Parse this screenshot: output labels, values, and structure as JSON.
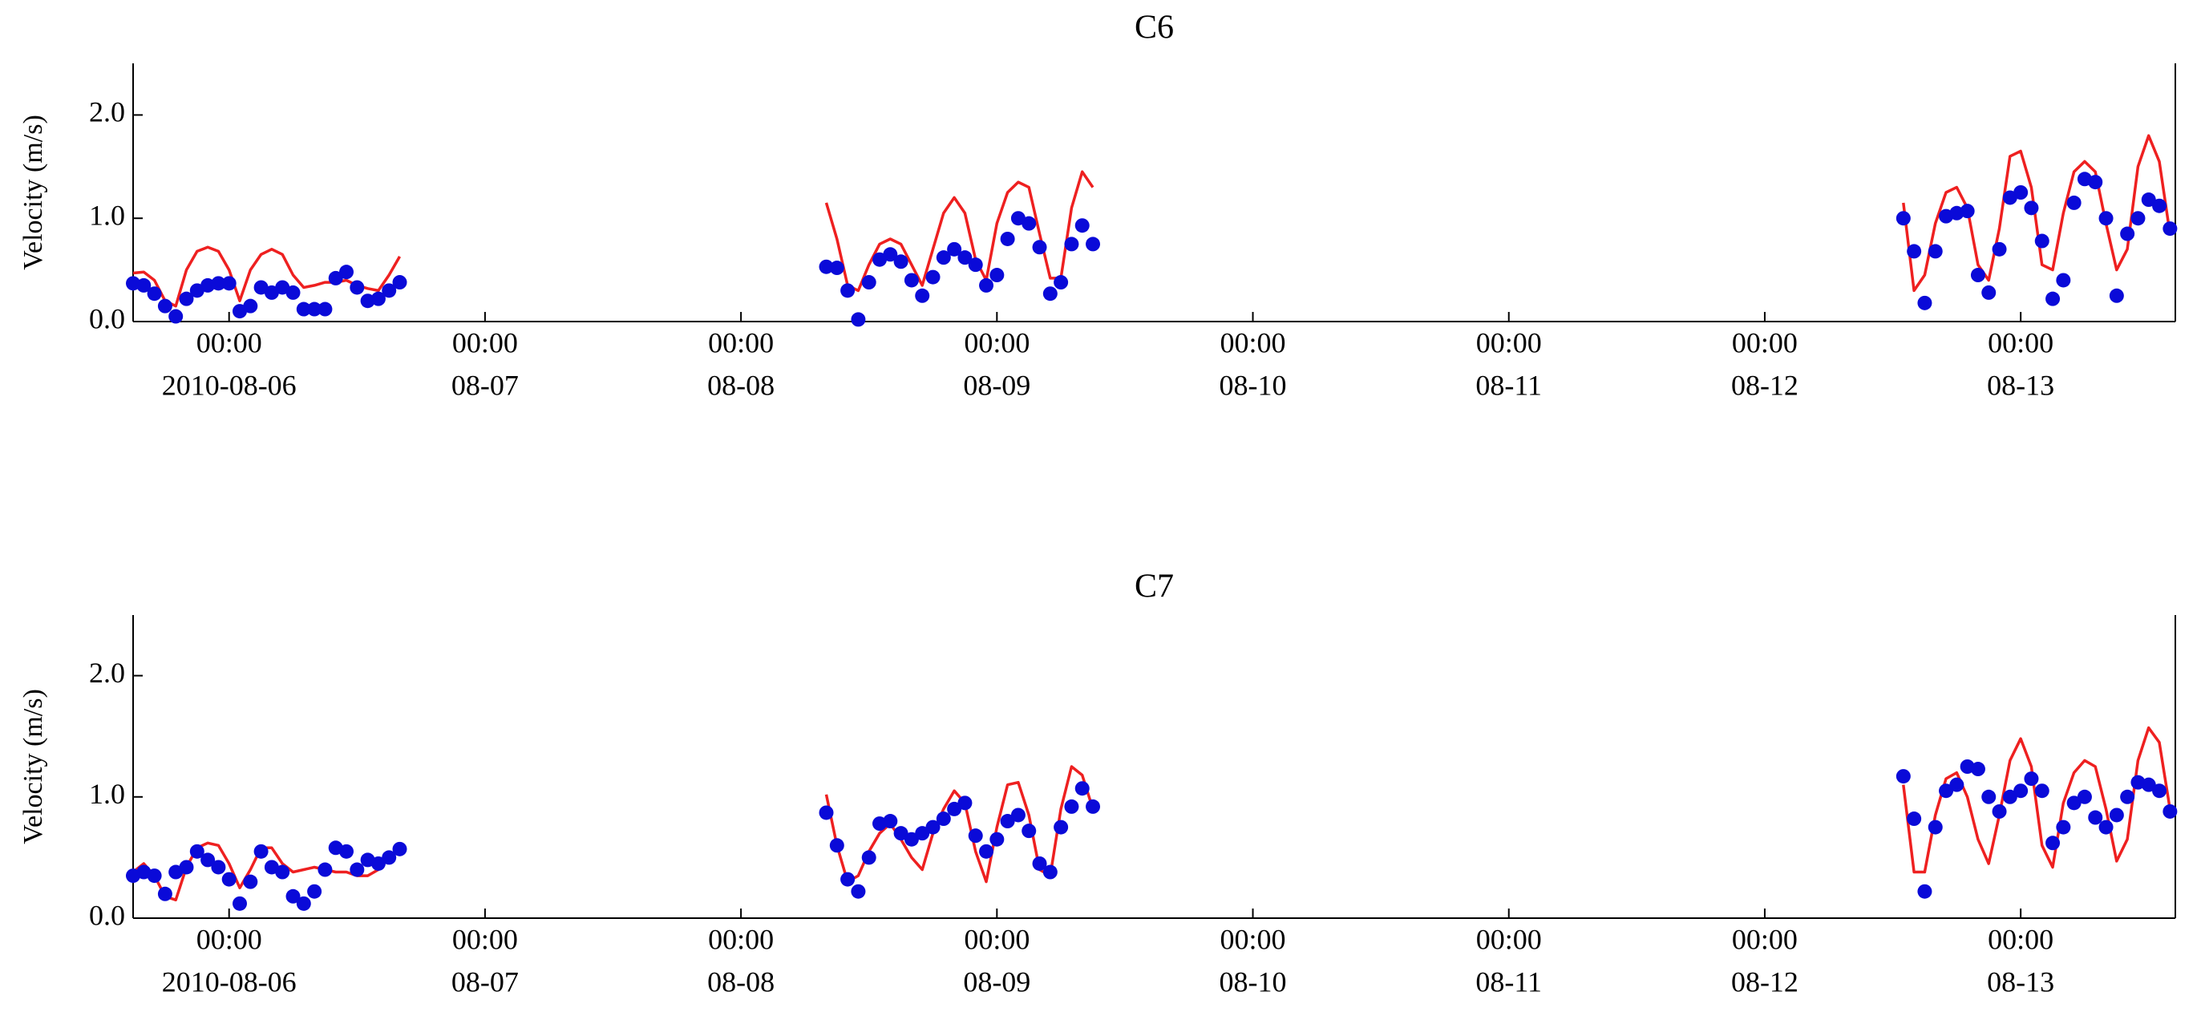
{
  "chart_data": [
    {
      "type": "line",
      "title": "C6",
      "y_label": "Velocity (m/s)",
      "xlim": [
        "2010-08-05 15:00",
        "2010-08-13 14:30"
      ],
      "xticks": [
        {
          "value": "2010-08-06 00:00",
          "label": [
            "00:00",
            "2010-08-06"
          ]
        },
        {
          "value": "2010-08-07 00:00",
          "label": [
            "00:00",
            "08-07"
          ]
        },
        {
          "value": "2010-08-08 00:00",
          "label": [
            "00:00",
            "08-08"
          ]
        },
        {
          "value": "2010-08-09 00:00",
          "label": [
            "00:00",
            "08-09"
          ]
        },
        {
          "value": "2010-08-10 00:00",
          "label": [
            "00:00",
            "08-10"
          ]
        },
        {
          "value": "2010-08-11 00:00",
          "label": [
            "00:00",
            "08-11"
          ]
        },
        {
          "value": "2010-08-12 00:00",
          "label": [
            "00:00",
            "08-12"
          ]
        },
        {
          "value": "2010-08-13 00:00",
          "label": [
            "00:00",
            "08-13"
          ]
        }
      ],
      "ylim": [
        0,
        2.5
      ],
      "yticks": [
        {
          "value": 0,
          "label": "0.0"
        },
        {
          "value": 1,
          "label": "1.0"
        },
        {
          "value": 2,
          "label": "2.0"
        }
      ],
      "x": [
        "2010-08-05 15:00",
        "2010-08-05 16:00",
        "2010-08-05 17:00",
        "2010-08-05 18:00",
        "2010-08-05 19:00",
        "2010-08-05 20:00",
        "2010-08-05 21:00",
        "2010-08-05 22:00",
        "2010-08-05 23:00",
        "2010-08-06 00:00",
        "2010-08-06 01:00",
        "2010-08-06 02:00",
        "2010-08-06 03:00",
        "2010-08-06 04:00",
        "2010-08-06 05:00",
        "2010-08-06 06:00",
        "2010-08-06 07:00",
        "2010-08-06 08:00",
        "2010-08-06 09:00",
        "2010-08-06 10:00",
        "2010-08-06 11:00",
        "2010-08-06 12:00",
        "2010-08-06 13:00",
        "2010-08-06 14:00",
        "2010-08-06 15:00",
        "2010-08-06 16:00",
        "2010-08-07 12:00",
        "2010-08-08 08:00",
        "2010-08-08 09:00",
        "2010-08-08 10:00",
        "2010-08-08 11:00",
        "2010-08-08 12:00",
        "2010-08-08 13:00",
        "2010-08-08 14:00",
        "2010-08-08 15:00",
        "2010-08-08 16:00",
        "2010-08-08 17:00",
        "2010-08-08 18:00",
        "2010-08-08 19:00",
        "2010-08-08 20:00",
        "2010-08-08 21:00",
        "2010-08-08 22:00",
        "2010-08-08 23:00",
        "2010-08-09 00:00",
        "2010-08-09 01:00",
        "2010-08-09 02:00",
        "2010-08-09 03:00",
        "2010-08-09 04:00",
        "2010-08-09 05:00",
        "2010-08-09 06:00",
        "2010-08-09 07:00",
        "2010-08-09 08:00",
        "2010-08-09 09:00",
        "2010-08-10 23:00",
        "2010-08-12 13:00",
        "2010-08-12 14:00",
        "2010-08-12 15:00",
        "2010-08-12 16:00",
        "2010-08-12 17:00",
        "2010-08-12 18:00",
        "2010-08-12 19:00",
        "2010-08-12 20:00",
        "2010-08-12 21:00",
        "2010-08-12 22:00",
        "2010-08-12 23:00",
        "2010-08-13 00:00",
        "2010-08-13 01:00",
        "2010-08-13 02:00",
        "2010-08-13 03:00",
        "2010-08-13 04:00",
        "2010-08-13 05:00",
        "2010-08-13 06:00",
        "2010-08-13 07:00",
        "2010-08-13 08:00",
        "2010-08-13 09:00",
        "2010-08-13 10:00",
        "2010-08-13 11:00",
        "2010-08-13 12:00",
        "2010-08-13 13:00",
        "2010-08-13 14:00"
      ],
      "series": [
        {
          "type": "line",
          "color": "#ee2020",
          "values": [
            0.47,
            0.48,
            0.4,
            0.2,
            0.15,
            0.5,
            0.68,
            0.72,
            0.68,
            0.5,
            0.2,
            0.5,
            0.65,
            0.7,
            0.65,
            0.45,
            0.33,
            0.35,
            0.38,
            0.38,
            0.4,
            0.35,
            0.32,
            0.3,
            0.45,
            0.63,
            null,
            1.15,
            0.8,
            0.35,
            0.3,
            0.55,
            0.75,
            0.8,
            0.75,
            0.55,
            0.35,
            0.7,
            1.05,
            1.2,
            1.05,
            0.6,
            0.4,
            0.95,
            1.25,
            1.35,
            1.3,
            0.85,
            0.42,
            0.42,
            1.1,
            1.45,
            1.3,
            null,
            1.15,
            0.3,
            0.45,
            0.95,
            1.25,
            1.3,
            1.1,
            0.55,
            0.4,
            0.9,
            1.6,
            1.65,
            1.3,
            0.55,
            0.5,
            1.05,
            1.45,
            1.55,
            1.45,
            0.95,
            0.5,
            0.7,
            1.5,
            1.8,
            1.55,
            0.85
          ]
        },
        {
          "type": "scatter",
          "color": "#0a0ad8",
          "values": [
            0.37,
            0.35,
            0.27,
            0.15,
            0.05,
            0.22,
            0.3,
            0.35,
            0.37,
            0.37,
            0.1,
            0.15,
            0.33,
            0.28,
            0.33,
            0.28,
            0.12,
            0.12,
            0.12,
            0.42,
            0.48,
            0.33,
            0.2,
            0.22,
            0.3,
            0.38,
            null,
            0.53,
            0.52,
            0.3,
            0.02,
            0.38,
            0.6,
            0.65,
            0.58,
            0.4,
            0.25,
            0.43,
            0.62,
            0.7,
            0.62,
            0.55,
            0.35,
            0.45,
            0.8,
            1.0,
            0.95,
            0.72,
            0.27,
            0.38,
            0.75,
            0.93,
            0.75,
            null,
            1.0,
            0.68,
            0.18,
            0.68,
            1.02,
            1.05,
            1.07,
            0.45,
            0.28,
            0.7,
            1.2,
            1.25,
            1.1,
            0.78,
            0.22,
            0.4,
            1.15,
            1.38,
            1.35,
            1.0,
            0.25,
            0.85,
            1.0,
            1.18,
            1.12,
            0.9
          ]
        }
      ]
    },
    {
      "type": "line",
      "title": "C7",
      "y_label": "Velocity (m/s)",
      "xlim": [
        "2010-08-05 15:00",
        "2010-08-13 14:30"
      ],
      "xticks": [
        {
          "value": "2010-08-06 00:00",
          "label": [
            "00:00",
            "2010-08-06"
          ]
        },
        {
          "value": "2010-08-07 00:00",
          "label": [
            "00:00",
            "08-07"
          ]
        },
        {
          "value": "2010-08-08 00:00",
          "label": [
            "00:00",
            "08-08"
          ]
        },
        {
          "value": "2010-08-09 00:00",
          "label": [
            "00:00",
            "08-09"
          ]
        },
        {
          "value": "2010-08-10 00:00",
          "label": [
            "00:00",
            "08-10"
          ]
        },
        {
          "value": "2010-08-11 00:00",
          "label": [
            "00:00",
            "08-11"
          ]
        },
        {
          "value": "2010-08-12 00:00",
          "label": [
            "00:00",
            "08-12"
          ]
        },
        {
          "value": "2010-08-13 00:00",
          "label": [
            "00:00",
            "08-13"
          ]
        }
      ],
      "ylim": [
        0,
        2.5
      ],
      "yticks": [
        {
          "value": 0,
          "label": "0.0"
        },
        {
          "value": 1,
          "label": "1.0"
        },
        {
          "value": 2,
          "label": "2.0"
        }
      ],
      "x": [
        "2010-08-05 15:00",
        "2010-08-05 16:00",
        "2010-08-05 17:00",
        "2010-08-05 18:00",
        "2010-08-05 19:00",
        "2010-08-05 20:00",
        "2010-08-05 21:00",
        "2010-08-05 22:00",
        "2010-08-05 23:00",
        "2010-08-06 00:00",
        "2010-08-06 01:00",
        "2010-08-06 02:00",
        "2010-08-06 03:00",
        "2010-08-06 04:00",
        "2010-08-06 05:00",
        "2010-08-06 06:00",
        "2010-08-06 07:00",
        "2010-08-06 08:00",
        "2010-08-06 09:00",
        "2010-08-06 10:00",
        "2010-08-06 11:00",
        "2010-08-06 12:00",
        "2010-08-06 13:00",
        "2010-08-06 14:00",
        "2010-08-06 15:00",
        "2010-08-06 16:00",
        "2010-08-07 12:00",
        "2010-08-08 08:00",
        "2010-08-08 09:00",
        "2010-08-08 10:00",
        "2010-08-08 11:00",
        "2010-08-08 12:00",
        "2010-08-08 13:00",
        "2010-08-08 14:00",
        "2010-08-08 15:00",
        "2010-08-08 16:00",
        "2010-08-08 17:00",
        "2010-08-08 18:00",
        "2010-08-08 19:00",
        "2010-08-08 20:00",
        "2010-08-08 21:00",
        "2010-08-08 22:00",
        "2010-08-08 23:00",
        "2010-08-09 00:00",
        "2010-08-09 01:00",
        "2010-08-09 02:00",
        "2010-08-09 03:00",
        "2010-08-09 04:00",
        "2010-08-09 05:00",
        "2010-08-09 06:00",
        "2010-08-09 07:00",
        "2010-08-09 08:00",
        "2010-08-09 09:00",
        "2010-08-10 23:00",
        "2010-08-12 13:00",
        "2010-08-12 14:00",
        "2010-08-12 15:00",
        "2010-08-12 16:00",
        "2010-08-12 17:00",
        "2010-08-12 18:00",
        "2010-08-12 19:00",
        "2010-08-12 20:00",
        "2010-08-12 21:00",
        "2010-08-12 22:00",
        "2010-08-12 23:00",
        "2010-08-13 00:00",
        "2010-08-13 01:00",
        "2010-08-13 02:00",
        "2010-08-13 03:00",
        "2010-08-13 04:00",
        "2010-08-13 05:00",
        "2010-08-13 06:00",
        "2010-08-13 07:00",
        "2010-08-13 08:00",
        "2010-08-13 09:00",
        "2010-08-13 10:00",
        "2010-08-13 11:00",
        "2010-08-13 12:00",
        "2010-08-13 13:00",
        "2010-08-13 14:00"
      ],
      "series": [
        {
          "type": "line",
          "color": "#ee2020",
          "values": [
            0.38,
            0.45,
            0.35,
            0.18,
            0.15,
            0.42,
            0.58,
            0.62,
            0.6,
            0.45,
            0.25,
            0.4,
            0.58,
            0.58,
            0.45,
            0.38,
            0.4,
            0.42,
            0.4,
            0.38,
            0.38,
            0.35,
            0.35,
            0.4,
            0.5,
            0.57,
            null,
            1.02,
            0.6,
            0.3,
            0.35,
            0.55,
            0.7,
            0.78,
            0.65,
            0.5,
            0.4,
            0.7,
            0.9,
            1.05,
            0.95,
            0.55,
            0.3,
            0.75,
            1.1,
            1.12,
            0.85,
            0.4,
            0.35,
            0.9,
            1.25,
            1.18,
            0.9,
            null,
            1.1,
            0.38,
            0.38,
            0.85,
            1.15,
            1.2,
            1.0,
            0.65,
            0.45,
            0.85,
            1.3,
            1.48,
            1.25,
            0.6,
            0.42,
            0.95,
            1.2,
            1.3,
            1.25,
            0.9,
            0.47,
            0.65,
            1.3,
            1.57,
            1.45,
            0.9
          ]
        },
        {
          "type": "scatter",
          "color": "#0a0ad8",
          "values": [
            0.35,
            0.38,
            0.35,
            0.2,
            0.38,
            0.42,
            0.55,
            0.48,
            0.42,
            0.32,
            0.12,
            0.3,
            0.55,
            0.42,
            0.38,
            0.18,
            0.12,
            0.22,
            0.4,
            0.58,
            0.55,
            0.4,
            0.48,
            0.45,
            0.5,
            0.57,
            null,
            0.87,
            0.6,
            0.32,
            0.22,
            0.5,
            0.78,
            0.8,
            0.7,
            0.65,
            0.7,
            0.75,
            0.82,
            0.9,
            0.95,
            0.68,
            0.55,
            0.65,
            0.8,
            0.85,
            0.72,
            0.45,
            0.38,
            0.75,
            0.92,
            1.07,
            0.92,
            null,
            1.17,
            0.82,
            0.22,
            0.75,
            1.05,
            1.1,
            1.25,
            1.23,
            1.0,
            0.88,
            1.0,
            1.05,
            1.15,
            1.05,
            0.62,
            0.75,
            0.95,
            1.0,
            0.83,
            0.75,
            0.85,
            1.0,
            1.12,
            1.1,
            1.05,
            0.88
          ]
        }
      ]
    }
  ]
}
